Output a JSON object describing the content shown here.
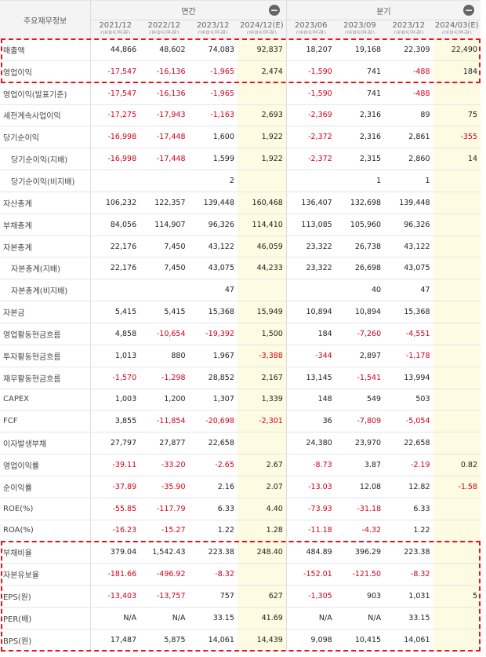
{
  "header": {
    "corner_label": "주요재무정보",
    "annual_label": "연간",
    "quarterly_label": "분기",
    "collapse_icon": "minus-icon",
    "periods": [
      {
        "date": "2021/12",
        "basis": "(IFRS연결)",
        "estimate": false
      },
      {
        "date": "2022/12",
        "basis": "(IFRS연결)",
        "estimate": false
      },
      {
        "date": "2023/12",
        "basis": "(IFRS연결)",
        "estimate": false
      },
      {
        "date": "2024/12(E)",
        "basis": "(IFRS연결)",
        "estimate": true
      },
      {
        "date": "2023/06",
        "basis": "(IFRS연결)",
        "estimate": false
      },
      {
        "date": "2023/09",
        "basis": "(IFRS연결)",
        "estimate": false
      },
      {
        "date": "2023/12",
        "basis": "(IFRS연결)",
        "estimate": false
      },
      {
        "date": "2024/03(E)",
        "basis": "(IFRS연결)",
        "estimate": true
      }
    ]
  },
  "rows": [
    {
      "label": "매출액",
      "indent": false,
      "values": [
        "44,866",
        "48,602",
        "74,083",
        "92,837",
        "18,207",
        "19,168",
        "22,309",
        "22,490"
      ]
    },
    {
      "label": "영업이익",
      "indent": false,
      "values": [
        "-17,547",
        "-16,136",
        "-1,965",
        "2,474",
        "-1,590",
        "741",
        "-488",
        "184"
      ]
    },
    {
      "label": "영업이익(발표기준)",
      "indent": false,
      "values": [
        "-17,547",
        "-16,136",
        "-1,965",
        "",
        "-1,590",
        "741",
        "-488",
        ""
      ]
    },
    {
      "label": "세전계속사업이익",
      "indent": false,
      "values": [
        "-17,275",
        "-17,943",
        "-1,163",
        "2,693",
        "-2,369",
        "2,316",
        "89",
        "75"
      ]
    },
    {
      "label": "당기순이익",
      "indent": false,
      "values": [
        "-16,998",
        "-17,448",
        "1,600",
        "1,922",
        "-2,372",
        "2,316",
        "2,861",
        "-355"
      ]
    },
    {
      "label": "당기순이익(지배)",
      "indent": true,
      "values": [
        "-16,998",
        "-17,448",
        "1,599",
        "1,922",
        "-2,372",
        "2,315",
        "2,860",
        "14"
      ]
    },
    {
      "label": "당기순이익(비지배)",
      "indent": true,
      "values": [
        "",
        "",
        "2",
        "",
        "",
        "1",
        "1",
        ""
      ]
    },
    {
      "label": "자산총계",
      "indent": false,
      "values": [
        "106,232",
        "122,357",
        "139,448",
        "160,468",
        "136,407",
        "132,698",
        "139,448",
        ""
      ]
    },
    {
      "label": "부채총계",
      "indent": false,
      "values": [
        "84,056",
        "114,907",
        "96,326",
        "114,410",
        "113,085",
        "105,960",
        "96,326",
        ""
      ]
    },
    {
      "label": "자본총계",
      "indent": false,
      "values": [
        "22,176",
        "7,450",
        "43,122",
        "46,059",
        "23,322",
        "26,738",
        "43,122",
        ""
      ]
    },
    {
      "label": "자본총계(지배)",
      "indent": true,
      "values": [
        "22,176",
        "7,450",
        "43,075",
        "44,233",
        "23,322",
        "26,698",
        "43,075",
        ""
      ]
    },
    {
      "label": "자본총계(비지배)",
      "indent": true,
      "values": [
        "",
        "",
        "47",
        "",
        "",
        "40",
        "47",
        ""
      ]
    },
    {
      "label": "자본금",
      "indent": false,
      "values": [
        "5,415",
        "5,415",
        "15,368",
        "15,949",
        "10,894",
        "10,894",
        "15,368",
        ""
      ]
    },
    {
      "label": "영업활동현금흐름",
      "indent": false,
      "values": [
        "4,858",
        "-10,654",
        "-19,392",
        "1,500",
        "184",
        "-7,260",
        "-4,551",
        ""
      ]
    },
    {
      "label": "투자활동현금흐름",
      "indent": false,
      "values": [
        "1,013",
        "880",
        "1,967",
        "-3,388",
        "-344",
        "2,897",
        "-1,178",
        ""
      ]
    },
    {
      "label": "재무활동현금흐름",
      "indent": false,
      "values": [
        "-1,570",
        "-1,298",
        "28,852",
        "2,167",
        "13,145",
        "-1,541",
        "13,994",
        ""
      ]
    },
    {
      "label": "CAPEX",
      "indent": false,
      "values": [
        "1,003",
        "1,200",
        "1,307",
        "1,339",
        "148",
        "549",
        "503",
        ""
      ]
    },
    {
      "label": "FCF",
      "indent": false,
      "values": [
        "3,855",
        "-11,854",
        "-20,698",
        "-2,301",
        "36",
        "-7,809",
        "-5,054",
        ""
      ]
    },
    {
      "label": "이자발생부채",
      "indent": false,
      "values": [
        "27,797",
        "27,877",
        "22,658",
        "",
        "24,380",
        "23,970",
        "22,658",
        ""
      ]
    },
    {
      "label": "영업이익률",
      "indent": false,
      "values": [
        "-39.11",
        "-33.20",
        "-2.65",
        "2.67",
        "-8.73",
        "3.87",
        "-2.19",
        "0.82"
      ]
    },
    {
      "label": "순이익률",
      "indent": false,
      "values": [
        "-37.89",
        "-35.90",
        "2.16",
        "2.07",
        "-13.03",
        "12.08",
        "12.82",
        "-1.58"
      ]
    },
    {
      "label": "ROE(%)",
      "indent": false,
      "values": [
        "-55.85",
        "-117.79",
        "6.33",
        "4.40",
        "-73.93",
        "-31.18",
        "6.33",
        ""
      ]
    },
    {
      "label": "ROA(%)",
      "indent": false,
      "values": [
        "-16.23",
        "-15.27",
        "1.22",
        "1.28",
        "-11.18",
        "-4.32",
        "1.22",
        ""
      ]
    },
    {
      "label": "부채비율",
      "indent": false,
      "values": [
        "379.04",
        "1,542.43",
        "223.38",
        "248.40",
        "484.89",
        "396.29",
        "223.38",
        ""
      ]
    },
    {
      "label": "자본유보율",
      "indent": false,
      "values": [
        "-181.66",
        "-496.92",
        "-8.32",
        "",
        "-152.01",
        "-121.50",
        "-8.32",
        ""
      ]
    },
    {
      "label": "EPS(원)",
      "indent": false,
      "values": [
        "-13,403",
        "-13,757",
        "757",
        "627",
        "-1,305",
        "903",
        "1,031",
        "5"
      ]
    },
    {
      "label": "PER(배)",
      "indent": false,
      "values": [
        "N/A",
        "N/A",
        "33.15",
        "41.69",
        "N/A",
        "N/A",
        "33.15",
        ""
      ]
    },
    {
      "label": "BPS(원)",
      "indent": false,
      "values": [
        "17,487",
        "5,875",
        "14,061",
        "14,439",
        "9,098",
        "10,415",
        "14,061",
        ""
      ]
    }
  ],
  "colors": {
    "negative": "#d0021b",
    "estimate_bg": "#fdfbe1",
    "highlight_border": "#e8141c",
    "header_bg": "#f4f4f4"
  }
}
